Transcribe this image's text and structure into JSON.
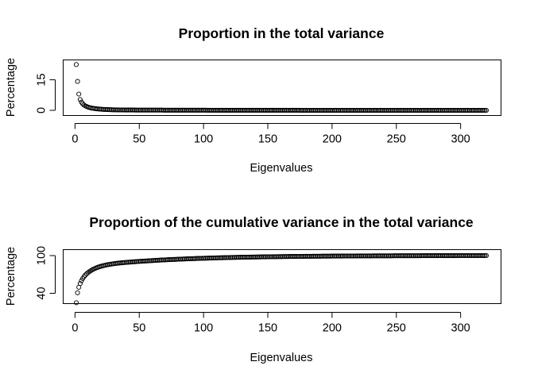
{
  "chart_data": [
    {
      "type": "scatter",
      "title": "Proportion in the total variance",
      "xlabel": "Eigenvalues",
      "ylabel": "Percentage",
      "xlim": [
        1,
        320
      ],
      "ylim": [
        0,
        23
      ],
      "x_ticks": [
        "0",
        "50",
        "100",
        "150",
        "200",
        "250",
        "300"
      ],
      "y_ticks": [
        "0",
        "15"
      ],
      "grid": false,
      "n_points": 320,
      "values_head": [
        22.5,
        14.2,
        8.0,
        5.3,
        4.0,
        3.2,
        2.6,
        2.2,
        1.9,
        1.6,
        1.4,
        1.25,
        1.1,
        1.0,
        0.9,
        0.82,
        0.75,
        0.68,
        0.62,
        0.57,
        0.52,
        0.48,
        0.44,
        0.41,
        0.38,
        0.35,
        0.33,
        0.31,
        0.29,
        0.27,
        0.25,
        0.24,
        0.22,
        0.21,
        0.2,
        0.19,
        0.18,
        0.17,
        0.16,
        0.15
      ],
      "values_tail": "remaining values approach 0"
    },
    {
      "type": "scatter",
      "title": "Proportion of the cumulative variance in the total variance",
      "xlabel": "Eigenvalues",
      "ylabel": "Percentage",
      "xlim": [
        1,
        320
      ],
      "ylim": [
        28,
        100
      ],
      "x_ticks": [
        "0",
        "50",
        "100",
        "150",
        "200",
        "250",
        "300"
      ],
      "y_ticks": [
        "40",
        "100"
      ],
      "grid": false,
      "n_points": 320,
      "values": "cumulative sum of the first chart's values, rising from 22.5 to 100"
    }
  ]
}
